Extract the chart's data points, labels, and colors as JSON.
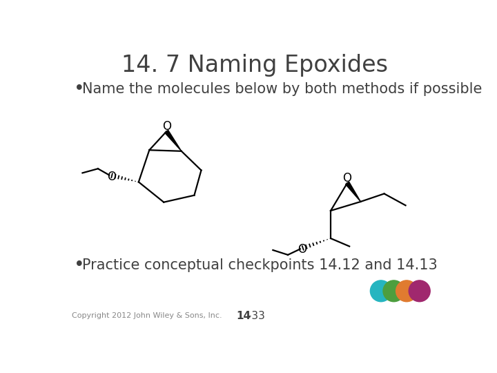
{
  "title": "14. 7 Naming Epoxides",
  "bullet1": "Name the molecules below by both methods if possible",
  "bullet2": "Practice conceptual checkpoints 14.12 and 14.13",
  "footer_left": "Copyright 2012 John Wiley & Sons, Inc.",
  "footer_bold": "14",
  "footer_normal": " -33",
  "bg_color": "#ffffff",
  "title_color": "#404040",
  "text_color": "#404040",
  "molecule_color": "#000000",
  "circle_colors": [
    "#26b5c0",
    "#4d9e3e",
    "#e07b30",
    "#a0286e"
  ],
  "title_fontsize": 24,
  "bullet_fontsize": 15,
  "footer_fontsize": 8
}
